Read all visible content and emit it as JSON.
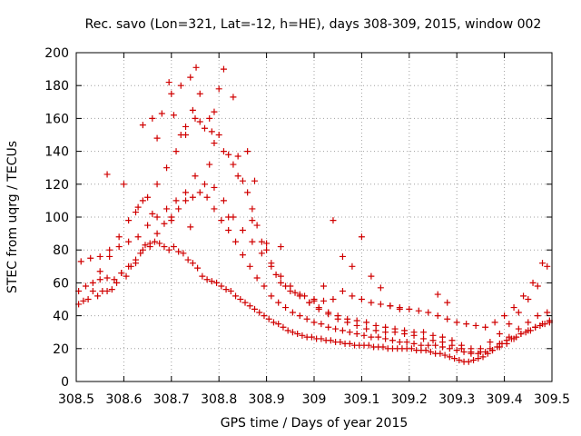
{
  "chart_data": {
    "type": "scatter",
    "title": "Rec. savo (Lon=321, Lat=-12, h=HE), days 308-309, 2015, window 002",
    "xlabel": "GPS time / Days of year 2015",
    "ylabel": "STEC from uqrg / TECUs",
    "xlim": [
      308.5,
      309.5
    ],
    "ylim": [
      0,
      200
    ],
    "xticks": [
      308.5,
      308.6,
      308.7,
      308.8,
      308.9,
      309,
      309.1,
      309.2,
      309.3,
      309.4,
      309.5
    ],
    "xtick_labels": [
      "308.5",
      "308.6",
      "308.7",
      "308.8",
      "308.9",
      "309",
      "309.1",
      "309.2",
      "309.3",
      "309.4",
      "309.5"
    ],
    "yticks": [
      0,
      20,
      40,
      60,
      80,
      100,
      120,
      140,
      160,
      180,
      200
    ],
    "ytick_labels": [
      "0",
      "20",
      "40",
      "60",
      "80",
      "100",
      "120",
      "140",
      "160",
      "180",
      "200"
    ],
    "grid": true,
    "marker": "plus",
    "color": "#d00000",
    "series": [
      {
        "name": "STEC",
        "x": [
          308.505,
          308.515,
          308.525,
          308.535,
          308.545,
          308.555,
          308.565,
          308.575,
          308.585,
          308.595,
          308.605,
          308.615,
          308.625,
          308.635,
          308.645,
          308.655,
          308.665,
          308.675,
          308.685,
          308.695,
          308.705,
          308.715,
          308.725,
          308.735,
          308.745,
          308.755,
          308.765,
          308.775,
          308.785,
          308.795,
          308.805,
          308.815,
          308.825,
          308.835,
          308.845,
          308.855,
          308.865,
          308.875,
          308.885,
          308.895,
          308.905,
          308.915,
          308.925,
          308.935,
          308.945,
          308.955,
          308.965,
          308.975,
          308.985,
          308.995,
          309.005,
          309.015,
          309.025,
          309.035,
          309.045,
          309.055,
          309.065,
          309.075,
          309.085,
          309.095,
          309.105,
          309.115,
          309.125,
          309.135,
          309.145,
          309.155,
          309.165,
          309.175,
          309.185,
          309.195,
          309.205,
          309.215,
          309.225,
          309.235,
          309.245,
          309.255,
          309.265,
          309.275,
          309.285,
          309.295,
          309.305,
          309.315,
          309.325,
          309.335,
          309.345,
          309.355,
          309.365,
          309.375,
          309.385,
          309.395,
          309.405,
          309.415,
          309.425,
          309.435,
          309.445,
          309.455,
          309.465,
          309.475,
          309.485,
          309.495,
          308.505,
          308.52,
          308.535,
          308.55,
          308.565,
          308.58,
          308.595,
          308.61,
          308.625,
          308.64,
          308.655,
          308.67,
          308.685,
          308.7,
          308.715,
          308.73,
          308.745,
          308.76,
          308.775,
          308.79,
          308.805,
          308.82,
          308.835,
          308.85,
          308.865,
          308.88,
          308.895,
          308.91,
          308.925,
          308.94,
          308.955,
          308.97,
          308.985,
          309.0,
          309.015,
          309.03,
          309.045,
          309.06,
          309.075,
          309.09,
          309.105,
          309.12,
          309.135,
          309.15,
          309.165,
          309.18,
          309.195,
          309.21,
          309.225,
          309.24,
          309.255,
          309.27,
          309.285,
          309.3,
          309.315,
          309.33,
          309.345,
          309.36,
          309.375,
          309.39,
          309.405,
          309.42,
          309.435,
          309.45,
          309.465,
          309.48,
          309.495,
          308.51,
          308.53,
          308.55,
          308.57,
          308.59,
          308.61,
          308.63,
          308.65,
          308.67,
          308.69,
          308.71,
          308.73,
          308.75,
          308.77,
          308.79,
          308.81,
          308.83,
          308.85,
          308.87,
          308.89,
          308.91,
          308.93,
          308.95,
          308.97,
          308.99,
          309.01,
          309.03,
          309.05,
          309.07,
          309.09,
          309.11,
          309.13,
          309.15,
          309.17,
          309.19,
          309.21,
          309.23,
          309.25,
          309.27,
          309.29,
          309.31,
          309.33,
          309.35,
          309.37,
          309.39,
          309.41,
          309.43,
          309.45,
          309.47,
          309.49,
          308.55,
          308.57,
          308.59,
          308.61,
          308.63,
          308.65,
          308.67,
          308.69,
          308.71,
          308.73,
          308.75,
          308.77,
          308.79,
          308.81,
          308.83,
          308.85,
          308.87,
          308.89,
          308.91,
          308.93,
          308.95,
          308.97,
          308.99,
          309.01,
          309.03,
          309.05,
          309.07,
          309.09,
          309.11,
          309.13,
          309.15,
          309.17,
          309.19,
          309.21,
          309.23,
          309.25,
          309.27,
          309.29,
          309.31,
          309.33,
          309.35,
          309.37,
          309.39,
          309.41,
          309.43,
          309.45,
          309.47,
          309.49,
          308.64,
          308.66,
          308.68,
          308.7,
          308.72,
          308.74,
          308.76,
          308.78,
          308.8,
          308.82,
          308.84,
          308.86,
          308.88,
          308.9,
          308.92,
          308.94,
          308.96,
          308.98,
          309.0,
          309.02,
          309.04,
          309.06,
          309.08,
          309.1,
          309.12,
          309.14,
          309.16,
          309.18,
          309.2,
          309.22,
          309.24,
          309.26,
          309.28,
          309.3,
          309.32,
          309.34,
          309.36,
          309.38,
          309.4,
          309.42,
          309.44,
          309.46,
          309.48,
          308.695,
          308.752,
          308.81,
          308.67,
          308.73,
          308.79,
          308.83,
          308.64,
          308.72,
          308.76,
          308.86,
          308.8,
          308.705,
          308.745,
          308.785,
          308.84,
          308.565,
          308.6,
          308.875,
          308.7,
          308.74,
          308.78,
          309.04,
          309.1,
          309.0,
          309.08,
          309.26,
          309.28,
          309.06,
          309.12,
          308.625,
          308.66,
          308.82,
          308.87,
          308.9,
          308.93,
          309.02,
          309.14,
          309.16,
          309.18
        ],
        "y": [
          47,
          49,
          50,
          55,
          52,
          55,
          55,
          56,
          60,
          66,
          64,
          70,
          72,
          78,
          83,
          84,
          85,
          84,
          82,
          80,
          82,
          79,
          78,
          74,
          72,
          69,
          64,
          62,
          61,
          60,
          58,
          56,
          55,
          52,
          50,
          48,
          46,
          44,
          42,
          40,
          38,
          36,
          35,
          33,
          31,
          30,
          29,
          28,
          27,
          27,
          26,
          26,
          25,
          25,
          24,
          24,
          23,
          23,
          22,
          22,
          22,
          22,
          21,
          21,
          21,
          20,
          20,
          20,
          20,
          20,
          20,
          19,
          19,
          19,
          18,
          17,
          17,
          16,
          15,
          14,
          13,
          12,
          12,
          13,
          14,
          15,
          17,
          19,
          21,
          23,
          25,
          26,
          27,
          29,
          30,
          31,
          33,
          34,
          35,
          36,
          55,
          58,
          60,
          62,
          63,
          62,
          66,
          70,
          74,
          80,
          82,
          90,
          96,
          100,
          105,
          110,
          112,
          115,
          112,
          105,
          98,
          92,
          85,
          77,
          70,
          63,
          58,
          52,
          48,
          45,
          42,
          40,
          38,
          36,
          35,
          33,
          32,
          31,
          30,
          29,
          28,
          27,
          27,
          26,
          25,
          24,
          24,
          23,
          22,
          22,
          22,
          21,
          20,
          19,
          18,
          17,
          17,
          18,
          19,
          21,
          23,
          26,
          29,
          31,
          33,
          35,
          37,
          73,
          75,
          76,
          80,
          82,
          85,
          88,
          95,
          100,
          105,
          110,
          115,
          125,
          120,
          118,
          110,
          100,
          92,
          85,
          78,
          70,
          64,
          58,
          53,
          48,
          44,
          41,
          38,
          36,
          34,
          32,
          31,
          30,
          30,
          29,
          28,
          26,
          25,
          24,
          22,
          20,
          18,
          18,
          20,
          23,
          27,
          32,
          36,
          40,
          42,
          67,
          76,
          88,
          98,
          106,
          112,
          120,
          130,
          140,
          150,
          160,
          154,
          145,
          140,
          132,
          122,
          105,
          85,
          72,
          60,
          55,
          52,
          48,
          45,
          42,
          40,
          38,
          37,
          36,
          34,
          33,
          32,
          31,
          30,
          30,
          28,
          27,
          25,
          22,
          20,
          20,
          24,
          29,
          35,
          42,
          50,
          58,
          70,
          156,
          160,
          163,
          175,
          180,
          185,
          175,
          160,
          150,
          138,
          125,
          115,
          95,
          80,
          65,
          58,
          54,
          52,
          50,
          49,
          50,
          55,
          52,
          50,
          48,
          47,
          46,
          45,
          44,
          43,
          42,
          40,
          38,
          36,
          35,
          34,
          33,
          36,
          40,
          45,
          52,
          60,
          72,
          182,
          191,
          190,
          148,
          155,
          164,
          173,
          110,
          150,
          158,
          140,
          178,
          162,
          165,
          152,
          137,
          126,
          120,
          122,
          98,
          94,
          132,
          98,
          88,
          49,
          70,
          53,
          48,
          76,
          64,
          103,
          102,
          100,
          98,
          84,
          82,
          58,
          57,
          46,
          44
        ]
      }
    ]
  }
}
